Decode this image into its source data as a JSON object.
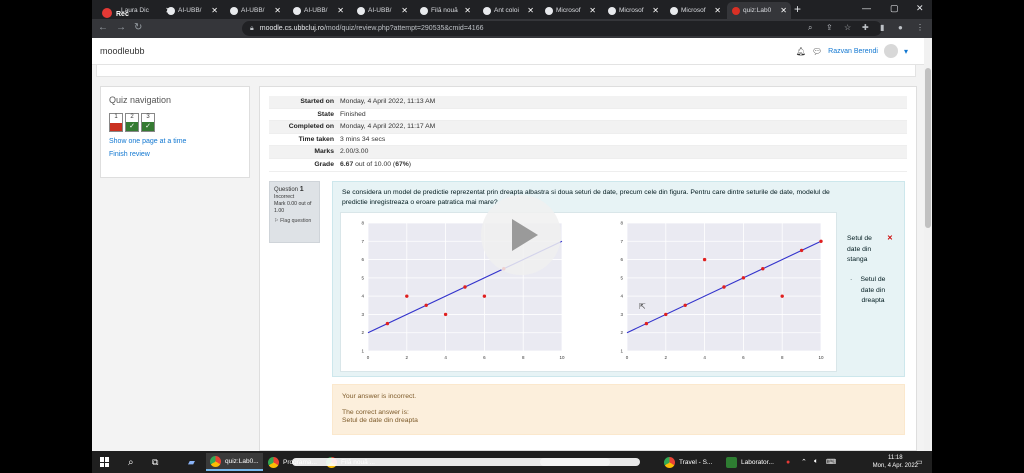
{
  "recording": {
    "label": "Rec"
  },
  "tabs": [
    {
      "label": "Laura Dic"
    },
    {
      "label": "AI-UBB/"
    },
    {
      "label": "AI-UBB/"
    },
    {
      "label": "AI-UBB/"
    },
    {
      "label": "AI-UBB/"
    },
    {
      "label": "Filă nouă"
    },
    {
      "label": "Ant coloi"
    },
    {
      "label": "Microsof"
    },
    {
      "label": "Microsof"
    },
    {
      "label": "Microsof"
    },
    {
      "label": "quiz:Lab0"
    }
  ],
  "address": {
    "host": "moodle.cs.ubbcluj.ro",
    "path": "/mod/quiz/review.php?attempt=290535&cmid=4166"
  },
  "site": {
    "brand": "moodleubb",
    "user": "Razvan Berendi"
  },
  "quiz_nav": {
    "title": "Quiz navigation",
    "questions": [
      {
        "num": "1",
        "state": "incorrect",
        "mark": ""
      },
      {
        "num": "2",
        "state": "correct",
        "mark": "✓"
      },
      {
        "num": "3",
        "state": "correct",
        "mark": "✓"
      }
    ],
    "show_one_page": "Show one page at a time",
    "finish_review": "Finish review"
  },
  "summary": [
    {
      "label": "Started on",
      "value": "Monday, 4 April 2022, 11:13 AM"
    },
    {
      "label": "State",
      "value": "Finished"
    },
    {
      "label": "Completed on",
      "value": "Monday, 4 April 2022, 11:17 AM"
    },
    {
      "label": "Time taken",
      "value": "3 mins 34 secs"
    },
    {
      "label": "Marks",
      "value": "2.00/3.00"
    },
    {
      "label": "Grade",
      "value_bold": "6.67",
      "value_mid": " out of 10.00 (",
      "value_pct": "67%",
      "value_end": ")"
    }
  ],
  "question": {
    "label": "Question",
    "number": "1",
    "status": "Incorrect",
    "mark": "Mark 0.00 out of 1.00",
    "flag": "Flag question",
    "text": "Se considera un model de predictie reprezentat prin dreapta albastra si doua seturi de date, precum cele din figura. Pentru care dintre seturile de date, modelul de predictie inregistreaza o eroare patratica mai mare?",
    "options": [
      {
        "label": "Setul de date din stanga",
        "selected": true,
        "mark": "✕"
      },
      {
        "label": "Setul de date din dreapta",
        "selected": false
      }
    ]
  },
  "feedback": {
    "incorrect": "Your answer is incorrect.",
    "correct_label": "The correct answer is:",
    "correct_answer": "Setul de date din dreapta"
  },
  "chart_data": [
    {
      "type": "scatter",
      "xlim": [
        0,
        10
      ],
      "ylim": [
        1,
        8
      ],
      "xticks": [
        0,
        2,
        4,
        6,
        8,
        10
      ],
      "yticks": [
        1,
        2,
        3,
        4,
        5,
        6,
        7,
        8
      ],
      "line": {
        "x": [
          0,
          10
        ],
        "y": [
          2,
          7
        ],
        "color": "#3333cc"
      },
      "points": [
        [
          1,
          2.5
        ],
        [
          2,
          4
        ],
        [
          3,
          3.5
        ],
        [
          4,
          3
        ],
        [
          5,
          4.5
        ],
        [
          6,
          4
        ],
        [
          7,
          5.5
        ]
      ],
      "point_color": "#e02020"
    },
    {
      "type": "scatter",
      "xlim": [
        0,
        10
      ],
      "ylim": [
        1,
        8
      ],
      "xticks": [
        0,
        2,
        4,
        6,
        8,
        10
      ],
      "yticks": [
        1,
        2,
        3,
        4,
        5,
        6,
        7,
        8
      ],
      "line": {
        "x": [
          0,
          10
        ],
        "y": [
          2,
          7
        ],
        "color": "#3333cc"
      },
      "points": [
        [
          1,
          2.5
        ],
        [
          2,
          3
        ],
        [
          3,
          3.5
        ],
        [
          4,
          6
        ],
        [
          5,
          4.5
        ],
        [
          6,
          5
        ],
        [
          7,
          5.5
        ],
        [
          8,
          4
        ],
        [
          9,
          6.5
        ],
        [
          10,
          7
        ]
      ],
      "point_color": "#e02020"
    }
  ],
  "taskbar": {
    "items": [
      {
        "label": "quiz:Lab0..."
      },
      {
        "label": "Programa..."
      },
      {
        "label": "Filă nouă ..."
      },
      {
        "label": "Travel - S..."
      },
      {
        "label": "Laborator..."
      }
    ],
    "time": "11:18",
    "date": "Mon, 4 Apr. 2022"
  },
  "colors": {
    "accent": "#1177d1",
    "question_bg": "#e7f3f5",
    "feedback_bg": "#fcefdc"
  }
}
